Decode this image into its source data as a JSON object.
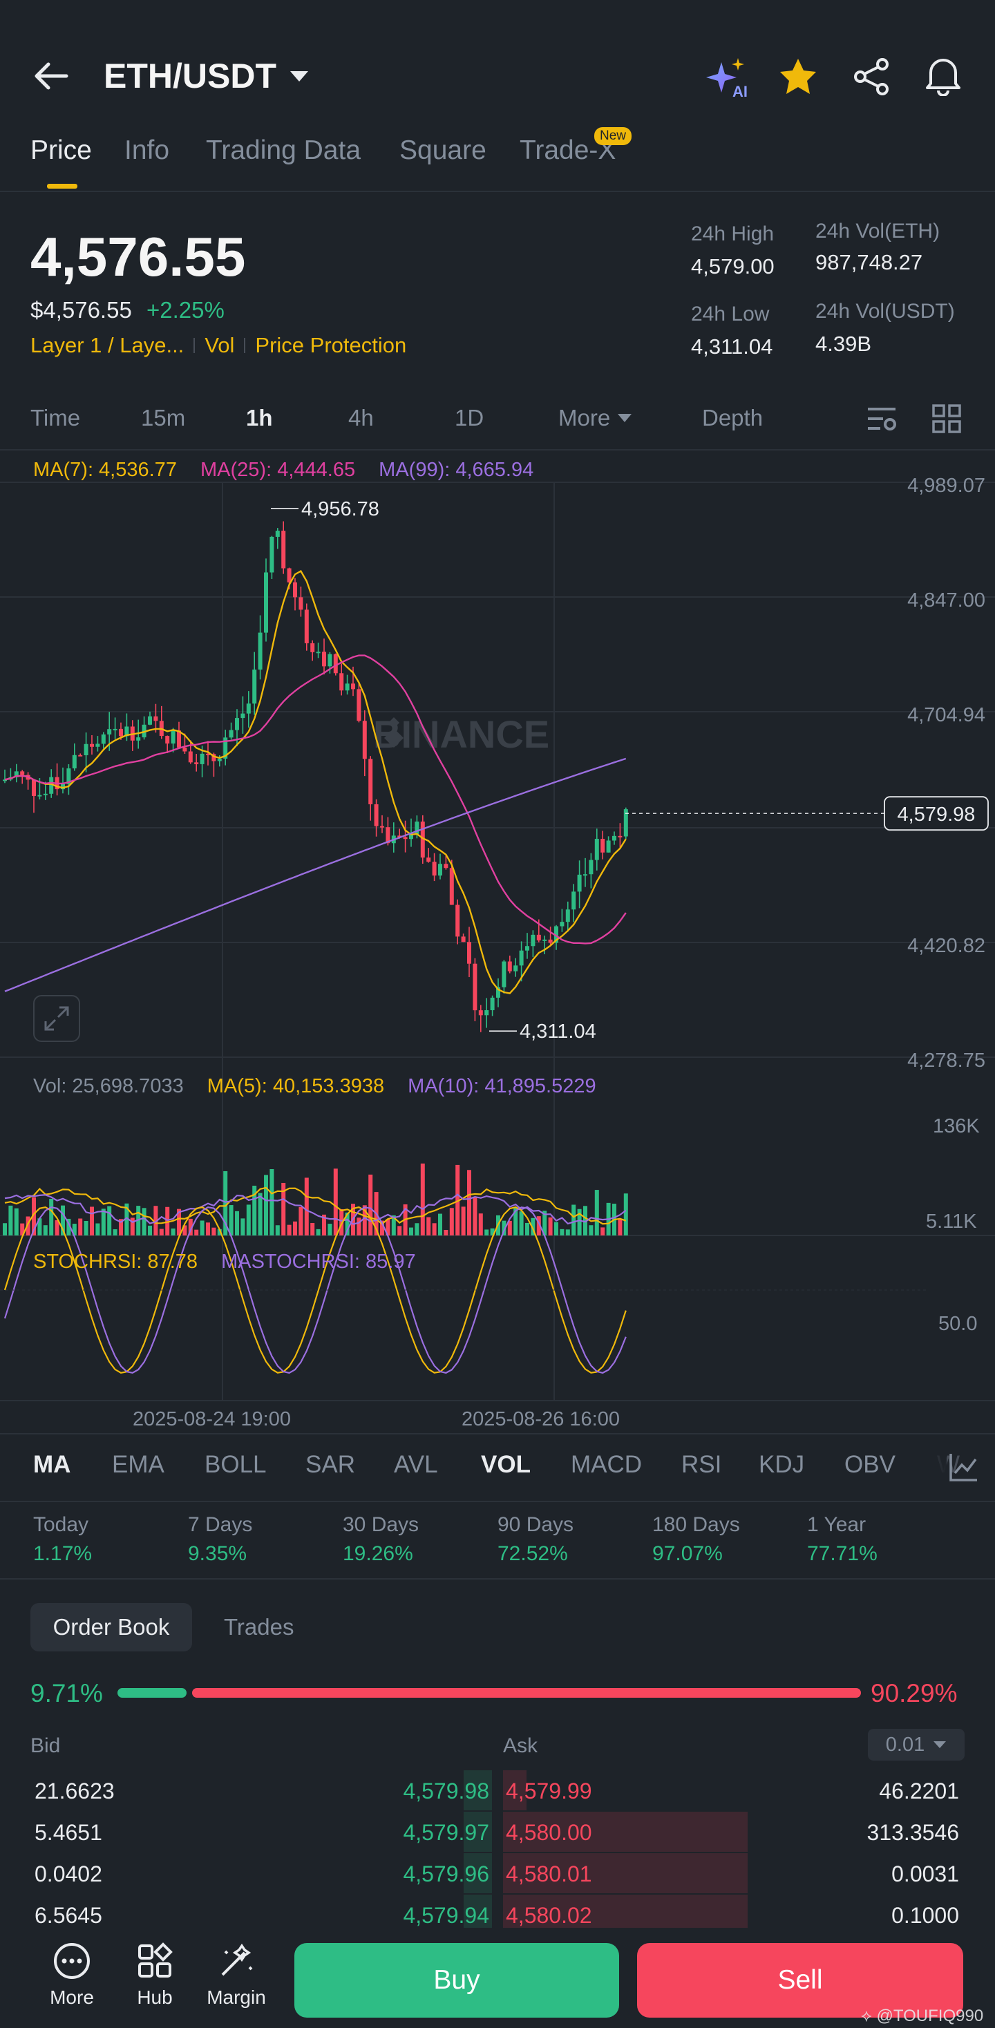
{
  "header": {
    "pair": "ETH/USDT",
    "ai_label": "AI"
  },
  "tabs": [
    {
      "label": "Price"
    },
    {
      "label": "Info"
    },
    {
      "label": "Trading Data"
    },
    {
      "label": "Square"
    },
    {
      "label": "Trade-X",
      "badge": "New"
    }
  ],
  "price": {
    "last": "4,576.55",
    "usd": "$4,576.55",
    "change": "+2.25%",
    "tags": [
      "Layer 1 / Laye...",
      "Vol",
      "Price Protection"
    ]
  },
  "stats": {
    "high_label": "24h High",
    "high": "4,579.00",
    "low_label": "24h Low",
    "low": "4,311.04",
    "vol_eth_label": "24h Vol(ETH)",
    "vol_eth": "987,748.27",
    "vol_usdt_label": "24h Vol(USDT)",
    "vol_usdt": "4.39B"
  },
  "intervals": [
    "Time",
    "15m",
    "1h",
    "4h",
    "1D",
    "More",
    "Depth"
  ],
  "active_interval": "1h",
  "ma": {
    "ma7": "MA(7): 4,536.77",
    "ma25": "MA(25): 4,444.65",
    "ma99": "MA(99): 4,665.94"
  },
  "price_axis": [
    "4,989.07",
    "4,847.00",
    "4,704.94",
    "4,420.82",
    "4,278.75"
  ],
  "current_price_tag": "4,579.98",
  "high_marker": "4,956.78",
  "low_marker": "4,311.04",
  "watermark": "BINANCE",
  "volume": {
    "label": "Vol: 25,698.7033",
    "ma5": "MA(5): 40,153.3938",
    "ma10": "MA(10): 41,895.5229",
    "axis_top": "136K",
    "axis_bottom": "5.11K"
  },
  "stochrsi": {
    "label": "STOCHRSI: 87.78",
    "ma_label": "MASTOCHRSI: 85.97",
    "axis": "50.0"
  },
  "dates": [
    "2025-08-24 19:00",
    "2025-08-26 16:00"
  ],
  "indicators": [
    "MA",
    "EMA",
    "BOLL",
    "SAR",
    "AVL",
    "VOL",
    "MACD",
    "RSI",
    "KDJ",
    "OBV",
    "W"
  ],
  "active_indicators": [
    "MA",
    "VOL"
  ],
  "performance": [
    {
      "label": "Today",
      "value": "1.17%"
    },
    {
      "label": "7 Days",
      "value": "9.35%"
    },
    {
      "label": "30 Days",
      "value": "19.26%"
    },
    {
      "label": "90 Days",
      "value": "72.52%"
    },
    {
      "label": "180 Days",
      "value": "97.07%"
    },
    {
      "label": "1 Year",
      "value": "77.71%"
    }
  ],
  "orderbook": {
    "tab_active": "Order Book",
    "tab_other": "Trades",
    "bid_pct": "9.71%",
    "ask_pct": "90.29%",
    "bid_ratio": 0.0971,
    "bid_label": "Bid",
    "ask_label": "Ask",
    "precision": "0.01",
    "rows": [
      {
        "bid_qty": "21.6623",
        "bid_price": "4,579.98",
        "ask_price": "4,579.99",
        "ask_qty": "46.2201",
        "bid_depth": 0.06,
        "ask_depth": 0.05
      },
      {
        "bid_qty": "5.4651",
        "bid_price": "4,579.97",
        "ask_price": "4,580.00",
        "ask_qty": "313.3546",
        "bid_depth": 0.06,
        "ask_depth": 0.52
      },
      {
        "bid_qty": "0.0402",
        "bid_price": "4,579.96",
        "ask_price": "4,580.01",
        "ask_qty": "0.0031",
        "bid_depth": 0.06,
        "ask_depth": 0.52
      },
      {
        "bid_qty": "6.5645",
        "bid_price": "4,579.94",
        "ask_price": "4,580.02",
        "ask_qty": "0.1000",
        "bid_depth": 0.06,
        "ask_depth": 0.52
      }
    ]
  },
  "bottom": {
    "more": "More",
    "hub": "Hub",
    "margin": "Margin",
    "buy": "Buy",
    "sell": "Sell",
    "credit": "@TOUFIQ990"
  },
  "colors": {
    "bg": "#1e2329",
    "green": "#2ebd85",
    "red": "#f6465d",
    "yellow": "#f0b90b",
    "ma7": "#f0b90b",
    "ma25": "#e040a0",
    "ma99": "#9b6fe0"
  }
}
